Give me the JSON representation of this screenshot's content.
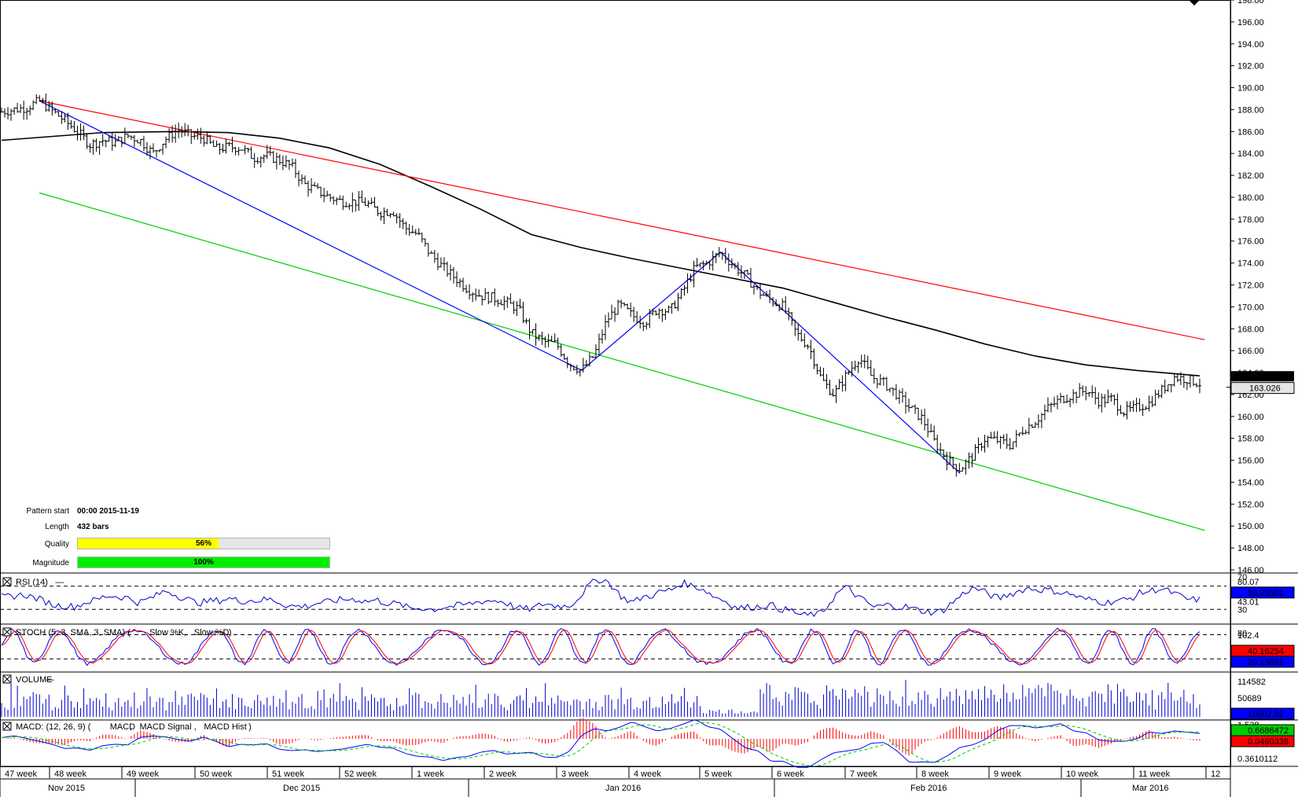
{
  "pattern_info": {
    "pattern_start_label": "Pattern start",
    "pattern_start_value": "00:00 2015-11-19",
    "length_label": "Length",
    "length_value": "432 bars",
    "quality_label": "Quality",
    "quality_value": "56%",
    "quality_fraction": 0.56,
    "magnitude_label": "Magnitude",
    "magnitude_value": "100%",
    "magnitude_fraction": 1.0
  },
  "colors": {
    "price_bars": "#000000",
    "moving_average": "#000000",
    "resistance_line": "#ff0000",
    "support_line": "#00cc00",
    "zigzag": "#0000ff",
    "quality_fill": "#ffff00",
    "magnitude_fill": "#00ee00",
    "rsi": "#0000cc",
    "stoch_slow_k": "#0000ff",
    "stoch_slow_d": "#ff0000",
    "volume": "#0000cc",
    "macd": "#0000ff",
    "macd_signal": "#00cc00",
    "macd_hist": "#ff0000"
  },
  "chart_data": [
    {
      "type": "ohlc",
      "name": "price",
      "yaxis": {
        "min": 146,
        "max": 198,
        "ticks": [
          "146.00",
          "148.00",
          "150.00",
          "152.00",
          "154.00",
          "156.00",
          "158.00",
          "160.00",
          "162.00",
          "164.00",
          "166.00",
          "168.00",
          "170.00",
          "172.00",
          "174.00",
          "176.00",
          "178.00",
          "180.00",
          "182.00",
          "184.00",
          "186.00",
          "188.00",
          "190.00",
          "192.00",
          "194.00",
          "196.00",
          "198.00"
        ]
      },
      "last_price": "163.026",
      "ma_label": "163.630",
      "x_weeks": [
        "47 week",
        "48 week",
        "49 week",
        "50 week",
        "51 week",
        "52 week",
        "1 week",
        "2 week",
        "3 week",
        "4 week",
        "5 week",
        "6 week",
        "7 week",
        "8 week",
        "9 week",
        "10 week",
        "11 week",
        "12"
      ],
      "x_months": [
        "Nov 2015",
        "Dec 2015",
        "Jan 2016",
        "Feb 2016",
        "Mar 2016"
      ],
      "close_path": [
        [
          0,
          187.8
        ],
        [
          2,
          188.2
        ],
        [
          3,
          188.8
        ],
        [
          5,
          187.0
        ],
        [
          6,
          186.0
        ],
        [
          7,
          184.8
        ],
        [
          8,
          185.2
        ],
        [
          9,
          185.0
        ],
        [
          10,
          185.6
        ],
        [
          11,
          185.2
        ],
        [
          12,
          184.0
        ],
        [
          13,
          185.3
        ],
        [
          14,
          186.2
        ],
        [
          15,
          185.6
        ],
        [
          16,
          185.4
        ],
        [
          17,
          184.4
        ],
        [
          18,
          184.6
        ],
        [
          19,
          184.5
        ],
        [
          20,
          183.6
        ],
        [
          21,
          183.8
        ],
        [
          22,
          183.4
        ],
        [
          23,
          182.8
        ],
        [
          24,
          181.2
        ],
        [
          25,
          180.6
        ],
        [
          26,
          180.0
        ],
        [
          27,
          179.6
        ],
        [
          28,
          179.6
        ],
        [
          29,
          179.4
        ],
        [
          30,
          178.6
        ],
        [
          31,
          178.8
        ],
        [
          32,
          177.2
        ],
        [
          33,
          176.6
        ],
        [
          34,
          174.8
        ],
        [
          35,
          173.6
        ],
        [
          36,
          172.6
        ],
        [
          37,
          171.6
        ],
        [
          38,
          171.0
        ],
        [
          39,
          170.8
        ],
        [
          40,
          170.4
        ],
        [
          41,
          169.8
        ],
        [
          42,
          167.6
        ],
        [
          43,
          166.8
        ],
        [
          44,
          166.6
        ],
        [
          45,
          164.8
        ],
        [
          46,
          164.2
        ],
        [
          47,
          165.6
        ],
        [
          48,
          168.8
        ],
        [
          49,
          170.2
        ],
        [
          50,
          169.2
        ],
        [
          51,
          168.6
        ],
        [
          52,
          169.8
        ],
        [
          53,
          169.6
        ],
        [
          54,
          171.4
        ],
        [
          55,
          173.6
        ],
        [
          56,
          174.0
        ],
        [
          57,
          175.0
        ],
        [
          58,
          173.8
        ],
        [
          59,
          172.8
        ],
        [
          60,
          171.4
        ],
        [
          61,
          170.6
        ],
        [
          62,
          170.0
        ],
        [
          63,
          167.6
        ],
        [
          64,
          166.4
        ],
        [
          65,
          163.4
        ],
        [
          66,
          162.0
        ],
        [
          67,
          163.8
        ],
        [
          68,
          165.4
        ],
        [
          69,
          163.6
        ],
        [
          70,
          163.0
        ],
        [
          71,
          162.0
        ],
        [
          72,
          160.8
        ],
        [
          73,
          159.8
        ],
        [
          74,
          157.6
        ],
        [
          75,
          156.0
        ],
        [
          76,
          155.2
        ],
        [
          77,
          156.4
        ],
        [
          78,
          158.0
        ],
        [
          79,
          157.8
        ],
        [
          80,
          157.4
        ],
        [
          81,
          158.8
        ],
        [
          82,
          159.6
        ],
        [
          83,
          160.8
        ],
        [
          84,
          161.6
        ],
        [
          85,
          162.0
        ],
        [
          86,
          162.4
        ],
        [
          87,
          161.4
        ],
        [
          88,
          161.6
        ],
        [
          89,
          160.4
        ],
        [
          90,
          160.8
        ],
        [
          91,
          161.2
        ],
        [
          92,
          162.4
        ],
        [
          93,
          163.6
        ],
        [
          94,
          163.4
        ],
        [
          95,
          163.0
        ]
      ],
      "moving_average": [
        [
          0,
          185.2
        ],
        [
          8,
          185.9
        ],
        [
          14,
          186.0
        ],
        [
          18,
          185.9
        ],
        [
          22,
          185.4
        ],
        [
          26,
          184.5
        ],
        [
          30,
          183.0
        ],
        [
          34,
          181.0
        ],
        [
          38,
          178.9
        ],
        [
          42,
          176.6
        ],
        [
          46,
          175.4
        ],
        [
          50,
          174.4
        ],
        [
          54,
          173.5
        ],
        [
          58,
          172.6
        ],
        [
          62,
          171.7
        ],
        [
          66,
          170.4
        ],
        [
          70,
          169.1
        ],
        [
          74,
          167.9
        ],
        [
          78,
          166.6
        ],
        [
          82,
          165.5
        ],
        [
          86,
          164.7
        ],
        [
          90,
          164.2
        ],
        [
          95,
          163.7
        ]
      ],
      "trendlines": [
        {
          "name": "resistance",
          "from": [
            3,
            188.8
          ],
          "to": [
            95.4,
            167.0
          ]
        },
        {
          "name": "support",
          "from": [
            3,
            180.4
          ],
          "to": [
            95.4,
            149.6
          ]
        },
        {
          "name": "zigzag",
          "points": [
            [
              3,
              188.8
            ],
            [
              46,
              164.2
            ],
            [
              57,
              175.0
            ],
            [
              76,
              154.8
            ]
          ]
        }
      ]
    },
    {
      "type": "line",
      "name": "RSI",
      "label": "RSI (14)",
      "yaxis_labels": [
        "70",
        "30",
        "80.07",
        "43.01"
      ],
      "levels": [
        70,
        30
      ],
      "last_value": "59.25501",
      "series": [
        {
          "name": "RSI (14)"
        }
      ]
    },
    {
      "type": "line",
      "name": "STOCH",
      "label": "STOCH (5, 3, SMA, 3, SMA)",
      "legend_slow_k": "Slow %K",
      "legend_slow_d": "Slow %D",
      "yaxis_labels": [
        "102.4",
        "80",
        "20"
      ],
      "levels": [
        80,
        20
      ],
      "last_value_d": "40.16254",
      "last_value_k": "20.13682",
      "series": [
        {
          "name": "Slow %K"
        },
        {
          "name": "Slow %D"
        }
      ]
    },
    {
      "type": "bar",
      "name": "VOLUME",
      "label": "VOLUME",
      "yaxis_labels": [
        "114582",
        "50689"
      ],
      "last_value": "10502.92"
    },
    {
      "type": "line",
      "name": "MACD",
      "label_prefix": "MACD: (12, 26, 9) (",
      "legend_macd": "MACD",
      "legend_signal": "MACD Signal",
      "legend_hist": "MACD Hist",
      "yaxis_labels": [
        "1.538",
        "0.3610112"
      ],
      "last_value_macd": "0.6686472",
      "last_value_hist": "0.0460338",
      "series": [
        {
          "name": "MACD"
        },
        {
          "name": "MACD Signal"
        },
        {
          "name": "MACD Hist"
        }
      ]
    }
  ]
}
